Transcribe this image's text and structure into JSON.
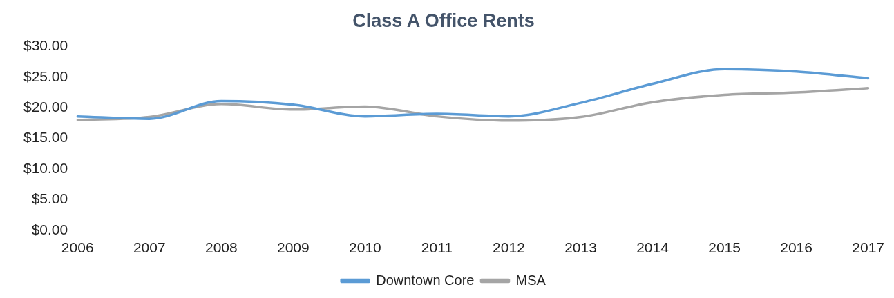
{
  "chart_data": {
    "type": "line",
    "title": "Class A Office Rents",
    "categories": [
      "2006",
      "2007",
      "2008",
      "2009",
      "2010",
      "2011",
      "2012",
      "2013",
      "2014",
      "2015",
      "2016",
      "2017"
    ],
    "series": [
      {
        "name": "Downtown Core",
        "color": "#5b9bd5",
        "values": [
          18.6,
          18.2,
          21.1,
          20.5,
          18.6,
          19.0,
          18.6,
          20.8,
          23.9,
          26.3,
          25.9,
          24.8
        ]
      },
      {
        "name": "MSA",
        "color": "#a5a5a5",
        "values": [
          18.0,
          18.5,
          20.6,
          19.7,
          20.2,
          18.6,
          17.9,
          18.5,
          20.9,
          22.1,
          22.5,
          23.2
        ]
      }
    ],
    "ylim": [
      0,
      30
    ],
    "yticks": [
      {
        "value": 0,
        "label": "$0.00"
      },
      {
        "value": 5,
        "label": "$5.00"
      },
      {
        "value": 10,
        "label": "$10.00"
      },
      {
        "value": 15,
        "label": "$15.00"
      },
      {
        "value": 20,
        "label": "$20.00"
      },
      {
        "value": 25,
        "label": "$25.00"
      },
      {
        "value": 30,
        "label": "$30.00"
      }
    ],
    "grid": false,
    "legend": "bottom",
    "marker": "none",
    "line_style": "solid"
  }
}
